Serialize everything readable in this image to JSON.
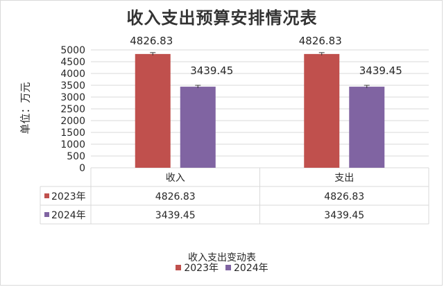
{
  "colors": {
    "series_2023": "#C0504D",
    "series_2024": "#8064A2",
    "grid": "#d9d9d9",
    "text": "#262626"
  },
  "chart_data": {
    "type": "bar",
    "title": "收入支出预算安排情况表",
    "ylabel": "单位：万元",
    "caption": "收入支出变动表",
    "categories": [
      "收入",
      "支出"
    ],
    "series": [
      {
        "name": "2023年",
        "values": [
          4826.83,
          4826.83
        ]
      },
      {
        "name": "2024年",
        "values": [
          3439.45,
          3439.45
        ]
      }
    ],
    "data_labels": [
      [
        "4826.83",
        "4826.83"
      ],
      [
        "3439.45",
        "3439.45"
      ]
    ],
    "ylim": [
      0,
      5000
    ],
    "yticks": [
      0,
      500,
      1000,
      1500,
      2000,
      2500,
      3000,
      3500,
      4000,
      4500,
      5000
    ],
    "grid": true,
    "error_bars": true,
    "data_table": true,
    "legend": "bottom"
  }
}
